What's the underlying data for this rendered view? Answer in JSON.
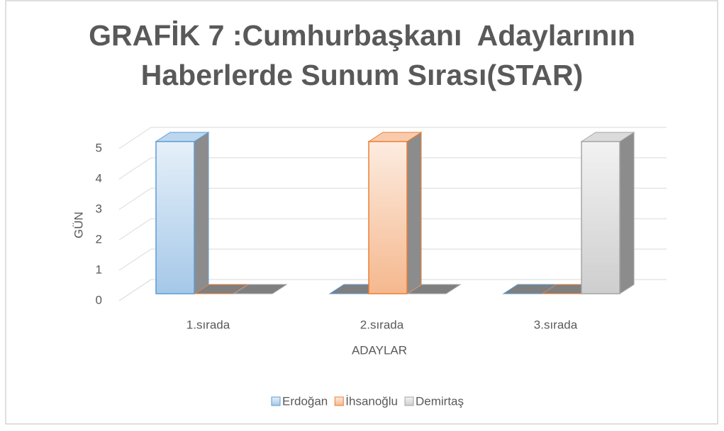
{
  "chart_data": {
    "type": "bar3d",
    "title": "GRAFİK 7 :Cumhurbaşkanı  Adaylarının Haberlerde Sunum Sırası(STAR)",
    "x_label": "ADAYLAR",
    "y_label": "GÜN",
    "categories": [
      "1.sırada",
      "2.sırada",
      "3.sırada"
    ],
    "series": [
      {
        "name": "Erdoğan",
        "color": "#5b9bd5",
        "values": [
          5,
          0,
          0
        ]
      },
      {
        "name": "İhsanoğlu",
        "color": "#ed7d31",
        "values": [
          0,
          5,
          0
        ]
      },
      {
        "name": "Demirtaş",
        "color": "#a5a5a5",
        "values": [
          0,
          0,
          5
        ]
      }
    ],
    "ylim": [
      0,
      5
    ],
    "yticks": [
      0,
      1,
      2,
      3,
      4,
      5
    ],
    "grid": true,
    "legend": "bottom"
  }
}
